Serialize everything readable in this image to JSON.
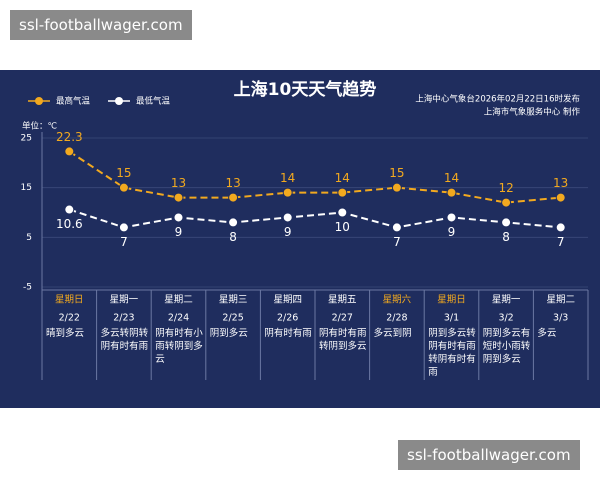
{
  "watermarks": [
    "ssl-footballwager.com",
    "ssl-footballwager.com"
  ],
  "chart_data": {
    "type": "line",
    "title": "上海10天天气趋势",
    "annotations": [
      "上海中心气象台2026年02月22日16时发布",
      "上海市气象服务中心 制作"
    ],
    "y_label": "单位：℃",
    "categories": [
      "2/22",
      "2/23",
      "2/24",
      "2/25",
      "2/26",
      "2/27",
      "2/28",
      "3/1",
      "3/2",
      "3/3"
    ],
    "weekdays": [
      "星期日",
      "星期一",
      "星期二",
      "星期三",
      "星期四",
      "星期五",
      "星期六",
      "星期日",
      "星期一",
      "星期二"
    ],
    "weekday_colors": [
      "#f2a91f",
      "#ffffff",
      "#ffffff",
      "#ffffff",
      "#ffffff",
      "#ffffff",
      "#f2a91f",
      "#f2a91f",
      "#ffffff",
      "#ffffff"
    ],
    "descriptions": [
      "晴到多云",
      "多云转阴转阴有时有雨",
      "阴有时有小雨转阴到多云",
      "阴到多云",
      "阴有时有雨",
      "阴有时有雨转阴到多云",
      "多云到阴",
      "阴到多云转阴有时有雨转阴有时有雨",
      "阴到多云有短时小雨转阴到多云",
      "多云"
    ],
    "series": [
      {
        "name": "最高气温",
        "color": "#f2a91f",
        "values": [
          22.3,
          15,
          13,
          13,
          14,
          14,
          15,
          14,
          12,
          13
        ]
      },
      {
        "name": "最低气温",
        "color": "#ffffff",
        "values": [
          10.6,
          7,
          9,
          8,
          9,
          10,
          7,
          9,
          8,
          7
        ]
      }
    ],
    "ylim": [
      -5,
      25
    ],
    "yticks": [
      -5,
      5,
      15,
      25
    ],
    "grid": true
  }
}
